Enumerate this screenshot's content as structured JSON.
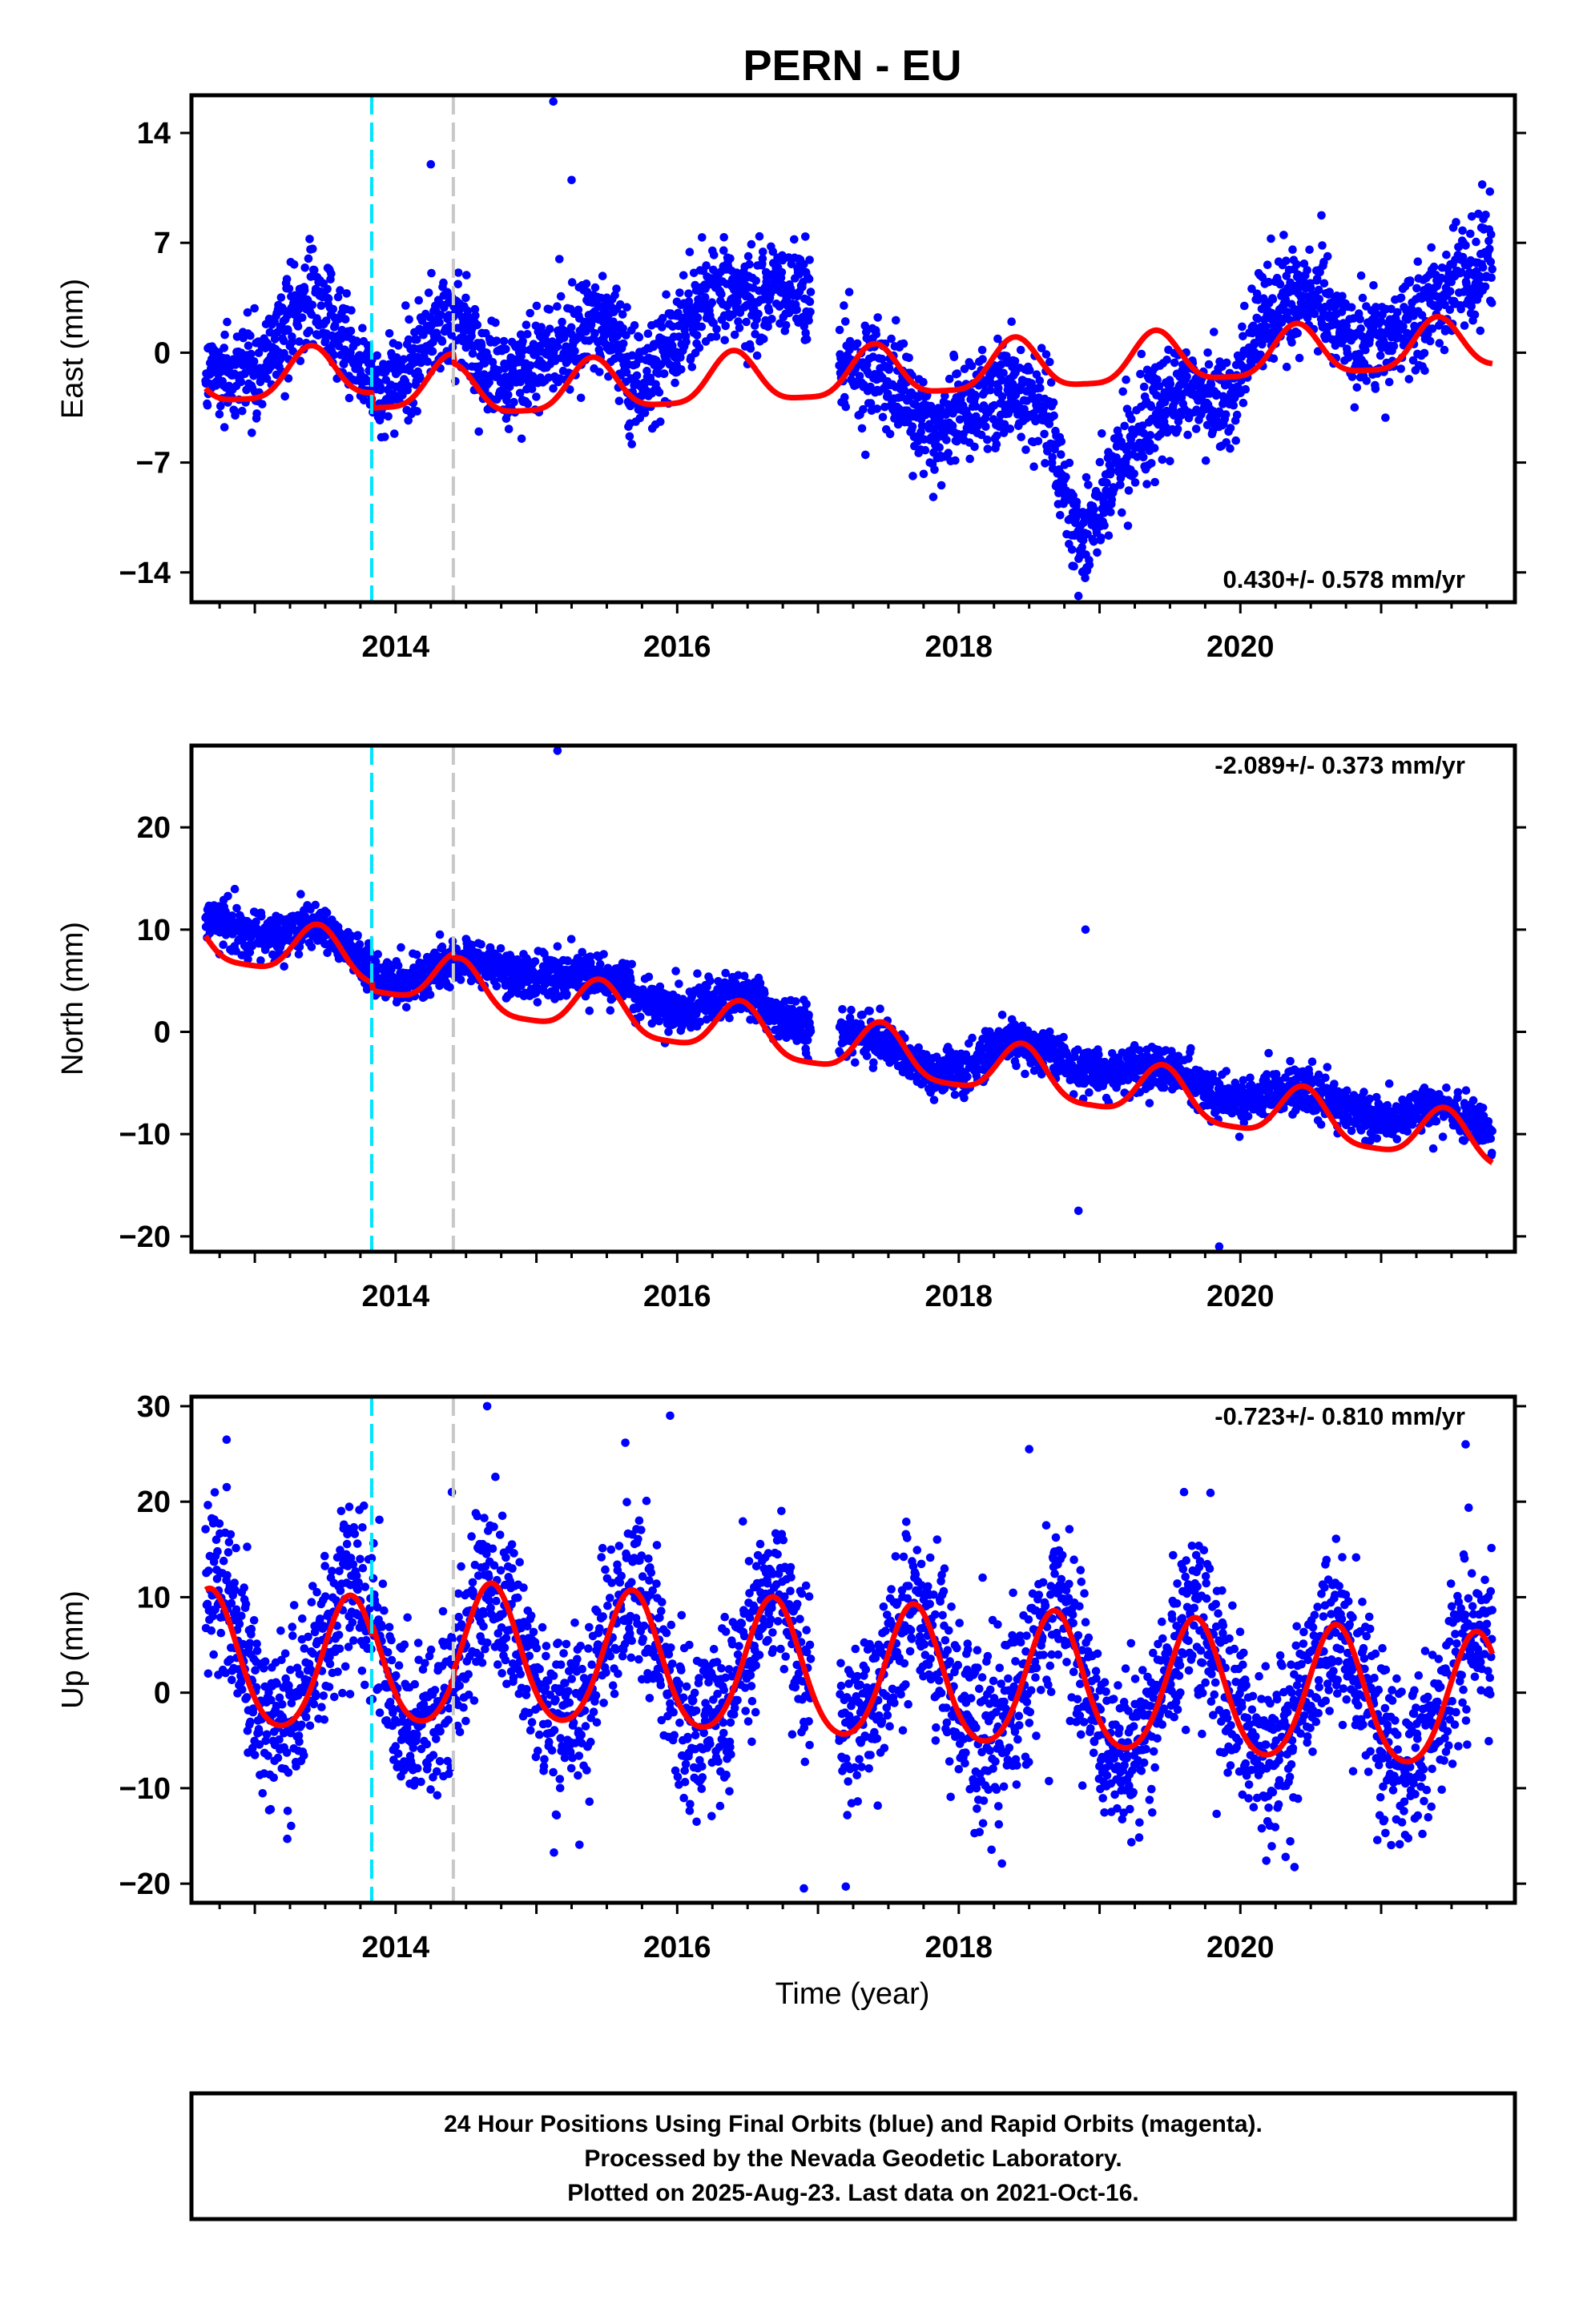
{
  "title": "PERN - EU",
  "xlabel": "Time (year)",
  "colors": {
    "final_points": "#0000ff",
    "rapid_points": "#ff00ff",
    "model": "#ff0000",
    "equipment_change": "#00e5ff",
    "other_event": "#c8c8c8"
  },
  "footer": {
    "line1": "24 Hour Positions Using Final Orbits (blue) and Rapid Orbits (magenta).",
    "line2": "Processed by the Nevada Geodetic Laboratory.",
    "line3": "Plotted on 2025-Aug-23. Last data on 2021-Oct-16."
  },
  "chart_data": [
    {
      "type": "scatter",
      "component": "east",
      "ylabel": "East (mm)",
      "rate_label": "0.430+/- 0.578 mm/yr",
      "xlim": [
        2012.55,
        2021.95
      ],
      "ylim": [
        -15.9,
        16.4
      ],
      "xticks": [
        2014,
        2016,
        2018,
        2020
      ],
      "yticks": [
        14,
        7,
        0,
        -7,
        -14
      ],
      "events": [
        {
          "x": 2013.83,
          "kind": "equipment_change"
        },
        {
          "x": 2014.41,
          "kind": "other_event"
        }
      ],
      "offset_at_events": -1.6,
      "annual_amp": 1.6,
      "annual_phase": 2013.4,
      "semi_amp": 0.4,
      "trend_mm_per_yr": 0.43,
      "trend_ref": 2017.0,
      "data_start": 2012.65,
      "data_end": 2021.79,
      "gaps": [
        [
          2016.95,
          2017.15
        ]
      ],
      "residual_anchors": [
        [
          2012.65,
          -1.5
        ],
        [
          2013.0,
          -1.0
        ],
        [
          2013.4,
          3.0
        ],
        [
          2013.9,
          -2.0
        ],
        [
          2014.4,
          1.5
        ],
        [
          2014.7,
          -1.5
        ],
        [
          2015.1,
          0.5
        ],
        [
          2015.5,
          1.5
        ],
        [
          2015.7,
          -2.0
        ],
        [
          2016.2,
          3.5
        ],
        [
          2016.5,
          3.0
        ],
        [
          2016.9,
          5.0
        ],
        [
          2017.2,
          -1.0
        ],
        [
          2017.6,
          -3.0
        ],
        [
          2017.8,
          -5.0
        ],
        [
          2018.2,
          -2.5
        ],
        [
          2018.6,
          -3.5
        ],
        [
          2018.8,
          -10.0
        ],
        [
          2018.9,
          -11.5
        ],
        [
          2019.2,
          -6.0
        ],
        [
          2019.6,
          -2.5
        ],
        [
          2019.9,
          -2.5
        ],
        [
          2020.2,
          2.5
        ],
        [
          2020.5,
          3.0
        ],
        [
          2020.9,
          1.0
        ],
        [
          2021.3,
          2.0
        ],
        [
          2021.79,
          6.5
        ]
      ],
      "noise_sd": 1.6,
      "outliers": [
        [
          2014.25,
          12.0
        ],
        [
          2015.12,
          16.0
        ],
        [
          2015.25,
          11.0
        ],
        [
          2018.85,
          -15.5
        ]
      ]
    },
    {
      "type": "scatter",
      "component": "north",
      "ylabel": "North (mm)",
      "rate_label": "-2.089+/- 0.373 mm/yr",
      "xlim": [
        2012.55,
        2021.95
      ],
      "ylim": [
        -21.5,
        28.0
      ],
      "xticks": [
        2014,
        2016,
        2018,
        2020
      ],
      "yticks": [
        20,
        10,
        0,
        -10,
        -20
      ],
      "events": [
        {
          "x": 2013.83,
          "kind": "equipment_change"
        },
        {
          "x": 2014.41,
          "kind": "other_event"
        }
      ],
      "offset_at_events": -1.2,
      "annual_amp": 2.5,
      "annual_phase": 2013.45,
      "semi_amp": 0.6,
      "trend_mm_per_yr": -2.089,
      "trend_ref": 2017.0,
      "data_start": 2012.65,
      "data_end": 2021.79,
      "gaps": [
        [
          2016.95,
          2017.15
        ]
      ],
      "residual_anchors": [
        [
          2012.65,
          2.0
        ],
        [
          2013.5,
          2.0
        ],
        [
          2014.0,
          -1.0
        ],
        [
          2014.5,
          1.0
        ],
        [
          2015.0,
          2.0
        ],
        [
          2015.6,
          1.0
        ],
        [
          2016.0,
          1.0
        ],
        [
          2016.6,
          1.5
        ],
        [
          2017.3,
          0.0
        ],
        [
          2017.8,
          -2.0
        ],
        [
          2018.3,
          1.0
        ],
        [
          2019.0,
          1.0
        ],
        [
          2019.8,
          0.5
        ],
        [
          2020.5,
          0.5
        ],
        [
          2021.4,
          1.0
        ],
        [
          2021.79,
          0.5
        ]
      ],
      "noise_sd": 1.1,
      "outliers": [
        [
          2015.15,
          27.5
        ],
        [
          2018.9,
          10.0
        ],
        [
          2019.85,
          -21.0
        ],
        [
          2018.85,
          -17.5
        ]
      ]
    },
    {
      "type": "scatter",
      "component": "up",
      "ylabel": "Up (mm)",
      "rate_label": "-0.723+/- 0.810 mm/yr",
      "xlim": [
        2012.55,
        2021.95
      ],
      "ylim": [
        -22.0,
        31.0
      ],
      "xticks": [
        2014,
        2016,
        2018,
        2020
      ],
      "yticks": [
        30,
        20,
        10,
        0,
        -10,
        -20
      ],
      "events": [
        {
          "x": 2013.83,
          "kind": "equipment_change"
        },
        {
          "x": 2014.41,
          "kind": "other_event"
        }
      ],
      "offset_at_events": 2.0,
      "annual_amp": 7.0,
      "annual_phase": 2013.68,
      "semi_amp": 0.8,
      "trend_mm_per_yr": -0.723,
      "trend_ref": 2017.0,
      "data_start": 2012.65,
      "data_end": 2021.79,
      "gaps": [
        [
          2016.95,
          2017.15
        ]
      ],
      "residual_anchors": [
        [
          2012.65,
          6.0
        ],
        [
          2013.0,
          2.0
        ],
        [
          2014.0,
          0.0
        ],
        [
          2021.79,
          0.0
        ]
      ],
      "noise_sd": 4.5,
      "outliers": [
        [
          2012.8,
          26.5
        ],
        [
          2014.4,
          21.0
        ],
        [
          2014.65,
          30.0
        ],
        [
          2015.95,
          29.0
        ],
        [
          2018.5,
          25.5
        ],
        [
          2019.6,
          21.0
        ],
        [
          2021.6,
          26.0
        ],
        [
          2016.9,
          -20.5
        ]
      ]
    }
  ]
}
